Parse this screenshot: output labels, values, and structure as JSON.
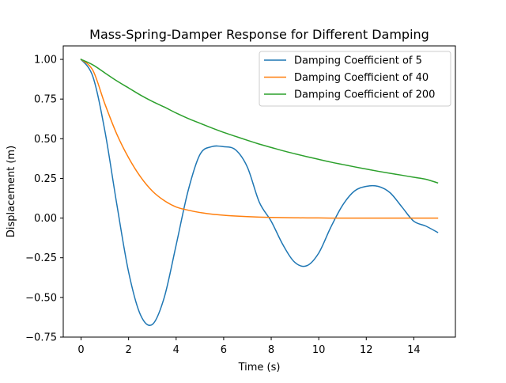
{
  "chart_data": {
    "type": "line",
    "title": "Mass-Spring-Damper Response for Different Damping",
    "xlabel": "Time (s)",
    "ylabel": "Displacement (m)",
    "xlim": [
      -0.75,
      15.75
    ],
    "ylim": [
      -0.75,
      1.085
    ],
    "xticks": [
      0,
      2,
      4,
      6,
      8,
      10,
      12,
      14
    ],
    "xtick_labels": [
      "0",
      "2",
      "4",
      "6",
      "8",
      "10",
      "12",
      "14"
    ],
    "yticks": [
      -0.75,
      -0.5,
      -0.25,
      0.0,
      0.25,
      0.5,
      0.75,
      1.0
    ],
    "ytick_labels": [
      "−0.75",
      "−0.50",
      "−0.25",
      "0.00",
      "0.25",
      "0.50",
      "0.75",
      "1.00"
    ],
    "grid": false,
    "legend_position": "top-right",
    "x": [
      0,
      0.5,
      1,
      1.5,
      2,
      2.5,
      3,
      3.5,
      4,
      4.5,
      5,
      5.5,
      6,
      6.5,
      7,
      7.5,
      8,
      8.5,
      9,
      9.5,
      10,
      10.5,
      11,
      11.5,
      12,
      12.5,
      13,
      13.5,
      14,
      14.5,
      15
    ],
    "series": [
      {
        "name": "Damping Coefficient of 5",
        "color": "#1f77b4",
        "values": [
          1.0,
          0.89,
          0.55,
          0.09,
          -0.34,
          -0.61,
          -0.67,
          -0.5,
          -0.17,
          0.17,
          0.4,
          0.45,
          0.45,
          0.43,
          0.32,
          0.1,
          -0.02,
          -0.17,
          -0.28,
          -0.3,
          -0.22,
          -0.06,
          0.08,
          0.17,
          0.2,
          0.2,
          0.16,
          0.07,
          -0.02,
          -0.05,
          -0.09
        ]
      },
      {
        "name": "Damping Coefficient of 40",
        "color": "#ff7f0e",
        "values": [
          1.0,
          0.93,
          0.72,
          0.53,
          0.38,
          0.26,
          0.17,
          0.11,
          0.07,
          0.05,
          0.035,
          0.025,
          0.018,
          0.013,
          0.009,
          0.006,
          0.004,
          0.003,
          0.002,
          0.001,
          0.001,
          0.0,
          0.0,
          0.0,
          0.0,
          0.0,
          0.0,
          0.0,
          0.0,
          0.0,
          0.0
        ]
      },
      {
        "name": "Damping Coefficient of 200",
        "color": "#2ca02c",
        "values": [
          1.0,
          0.965,
          0.915,
          0.865,
          0.82,
          0.775,
          0.735,
          0.7,
          0.662,
          0.628,
          0.598,
          0.568,
          0.54,
          0.515,
          0.49,
          0.466,
          0.445,
          0.424,
          0.405,
          0.387,
          0.37,
          0.353,
          0.338,
          0.323,
          0.309,
          0.295,
          0.282,
          0.27,
          0.257,
          0.245,
          0.222
        ]
      }
    ]
  }
}
